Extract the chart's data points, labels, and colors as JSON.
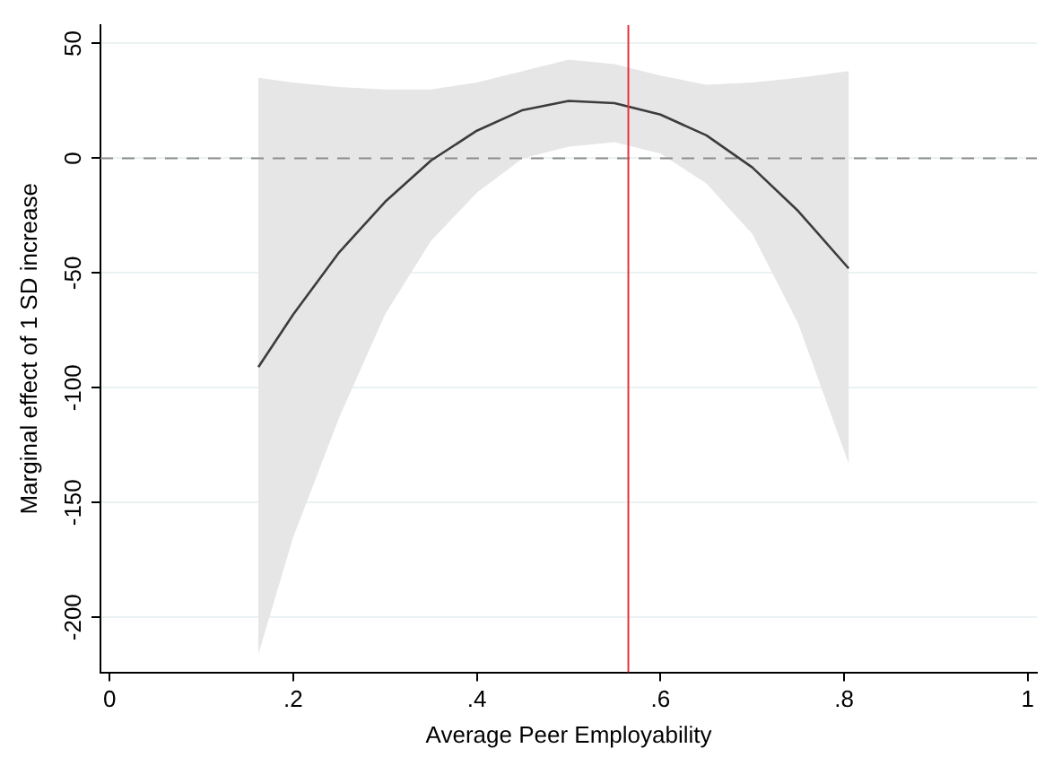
{
  "chart_data": {
    "type": "line",
    "xlabel": "Average Peer Employability",
    "ylabel": "Marginal effect of 1 SD increase",
    "xlim": [
      -0.01,
      1.01
    ],
    "xticks": [
      {
        "value": 0,
        "label": "0"
      },
      {
        "value": 0.2,
        "label": ".2"
      },
      {
        "value": 0.4,
        "label": ".4"
      },
      {
        "value": 0.6,
        "label": ".6"
      },
      {
        "value": 0.8,
        "label": ".8"
      },
      {
        "value": 1,
        "label": "1"
      }
    ],
    "ylim": [
      -224,
      58
    ],
    "yticks": [
      50,
      0,
      -50,
      -100,
      -150,
      -200
    ],
    "grid": "y",
    "legend": false,
    "marker": "none",
    "line_style": "solid",
    "series": [
      {
        "color": "#3c3c3c",
        "x": [
          0.162,
          0.2,
          0.25,
          0.3,
          0.35,
          0.4,
          0.45,
          0.5,
          0.55,
          0.6,
          0.65,
          0.7,
          0.75,
          0.805
        ],
        "values": [
          -91,
          -68,
          -41,
          -19,
          -1,
          12,
          21,
          25,
          24,
          19,
          10,
          -4,
          -23,
          -48
        ],
        "lower": [
          -216,
          -165,
          -113,
          -68,
          -36,
          -15,
          0,
          5,
          7,
          2,
          -11,
          -33,
          -72,
          -133
        ],
        "upper": [
          35,
          33,
          31,
          30,
          30,
          33,
          38,
          43,
          41,
          36,
          32,
          33,
          35,
          38
        ]
      }
    ],
    "ref_lines": [
      {
        "axis": "y",
        "value": 0,
        "color": "#8c8c8c",
        "line_style": "dashed"
      },
      {
        "axis": "x",
        "value": 0.565,
        "color": "#e8323c",
        "line_style": "solid"
      }
    ]
  }
}
